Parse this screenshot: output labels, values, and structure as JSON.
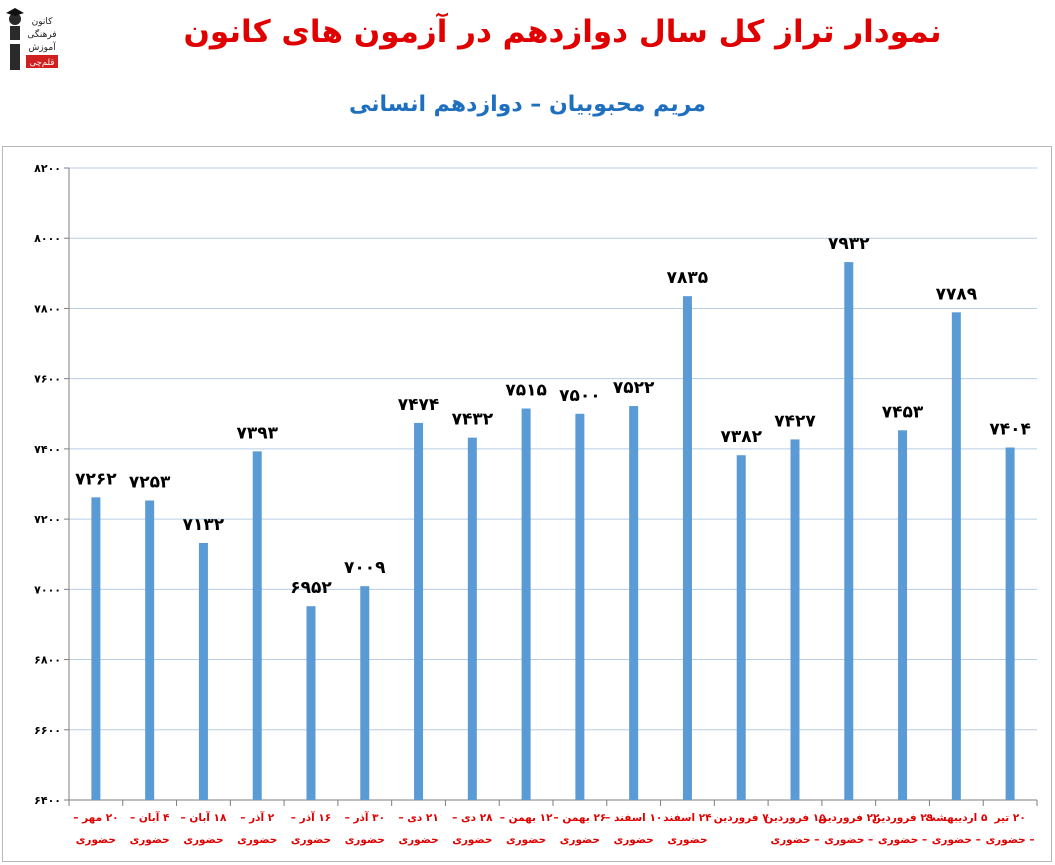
{
  "title": "نمودار تراز کل سال دوازدهم در آزمون های کانون",
  "subtitle": "مریم محبوبیان – دوازدهم انسانی",
  "logo": {
    "lines": [
      "کانون",
      "فرهنگی",
      "آموزش",
      "قلم‌چی"
    ],
    "icon": "graduate-figure-icon"
  },
  "colors": {
    "bar": "#5b9bd5",
    "title": "#e00000",
    "subtitle": "#1f6fc0",
    "category_label": "#e00000",
    "grid": "#b9cde5",
    "value_label": "#000000"
  },
  "chart_data": {
    "type": "bar",
    "title": "نمودار تراز کل سال دوازدهم در آزمون های کانون",
    "subtitle": "مریم محبوبیان – دوازدهم انسانی",
    "categories": [
      [
        "۲۰ مهر –",
        "حضوری"
      ],
      [
        "۴ آبان –",
        "حضوری"
      ],
      [
        "۱۸ آبان –",
        "حضوری"
      ],
      [
        "۲ آذر –",
        "حضوری"
      ],
      [
        "۱۶ آذر –",
        "حضوری"
      ],
      [
        "۳۰ آذر –",
        "حضوری"
      ],
      [
        "۲۱ دی –",
        "حضوری"
      ],
      [
        "۲۸ دی –",
        "حضوری"
      ],
      [
        "۱۲ بهمن –",
        "حضوری"
      ],
      [
        "۲۶ بهمن –",
        "حضوری"
      ],
      [
        "۱۰ اسفند –",
        "حضوری"
      ],
      [
        "۲۴ اسفند",
        "حضوری"
      ],
      [
        "۷ فروردین",
        ""
      ],
      [
        "۱۵ فروردین",
        "– حضوری"
      ],
      [
        "۲۲ فروردین",
        "– حضوری"
      ],
      [
        "۲۹ فروردین",
        "– حضوری"
      ],
      [
        "۵ اردیبهشت",
        "– حضوری"
      ],
      [
        "۲۰ تیر",
        "– حضوری"
      ]
    ],
    "values": [
      7262,
      7253,
      7132,
      7393,
      6952,
      7009,
      7474,
      7432,
      7515,
      7500,
      7522,
      7835,
      7382,
      7427,
      7932,
      7453,
      7789,
      7404
    ],
    "value_labels": [
      "۷۲۶۲",
      "۷۲۵۳",
      "۷۱۳۲",
      "۷۳۹۳",
      "۶۹۵۲",
      "۷۰۰۹",
      "۷۴۷۴",
      "۷۴۳۲",
      "۷۵۱۵",
      "۷۵۰۰",
      "۷۵۲۲",
      "۷۸۳۵",
      "۷۳۸۲",
      "۷۴۲۷",
      "۷۹۳۲",
      "۷۴۵۳",
      "۷۷۸۹",
      "۷۴۰۴"
    ],
    "ylim": [
      6400,
      8200
    ],
    "ytick_values": [
      6400,
      6600,
      6800,
      7000,
      7200,
      7400,
      7600,
      7800,
      8000,
      8200
    ],
    "ytick_labels": [
      "۶۴۰۰",
      "۶۶۰۰",
      "۶۸۰۰",
      "۷۰۰۰",
      "۷۲۰۰",
      "۷۴۰۰",
      "۷۶۰۰",
      "۷۸۰۰",
      "۸۰۰۰",
      "۸۲۰۰"
    ],
    "grid": true,
    "legend": "none",
    "xlabel": "",
    "ylabel": ""
  }
}
